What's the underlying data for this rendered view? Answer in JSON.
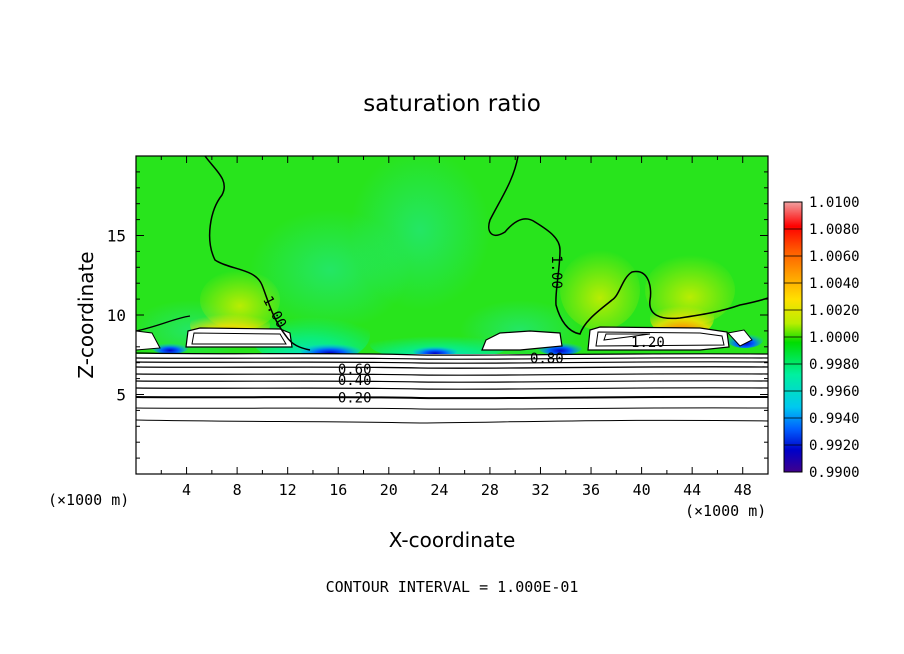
{
  "chart_data": {
    "type": "heatmap",
    "title": "saturation ratio",
    "xlabel": "X-coordinate",
    "ylabel": "Z-coordinate",
    "x_unit": "(×1000 m)",
    "z_unit": "(×1000 m)",
    "xlim": [
      0,
      50
    ],
    "zlim": [
      0,
      20
    ],
    "x_ticks": [
      "4",
      "8",
      "12",
      "16",
      "20",
      "24",
      "28",
      "32",
      "36",
      "40",
      "44",
      "48"
    ],
    "z_ticks": [
      "5",
      "10",
      "15"
    ],
    "footer": "CONTOUR INTERVAL = 1.000E-01",
    "colorbar": {
      "min": 0.99,
      "max": 1.01,
      "labels": [
        "1.0100",
        "1.0080",
        "1.0060",
        "1.0040",
        "1.0020",
        "1.0000",
        "0.9980",
        "0.9960",
        "0.9940",
        "0.9920",
        "0.9900"
      ],
      "colors": [
        "#f0a0a0",
        "#ff0000",
        "#ff5a00",
        "#ff9f00",
        "#ffe000",
        "#b8ee00",
        "#00dd00",
        "#00f0a0",
        "#00c8f0",
        "#0060ff",
        "#0000c8",
        "#40008c"
      ]
    },
    "contour_labels": [
      {
        "text": "1.00",
        "x": 11,
        "z": 10.2
      },
      {
        "text": "1.00",
        "x": 33.3,
        "z": 12.7
      },
      {
        "text": "1.20",
        "x": 40.5,
        "z": 8.3
      },
      {
        "text": "0.80",
        "x": 32.5,
        "z": 7.3
      },
      {
        "text": "0.60",
        "x": 17.3,
        "z": 6.6
      },
      {
        "text": "0.40",
        "x": 17.3,
        "z": 5.9
      },
      {
        "text": "0.20",
        "x": 17.3,
        "z": 4.8
      }
    ],
    "subsaturated_contours_z": [
      7.0,
      6.85,
      6.7,
      6.55,
      6.25,
      5.95,
      5.6,
      5.25,
      4.9,
      4.2,
      3.45
    ]
  }
}
